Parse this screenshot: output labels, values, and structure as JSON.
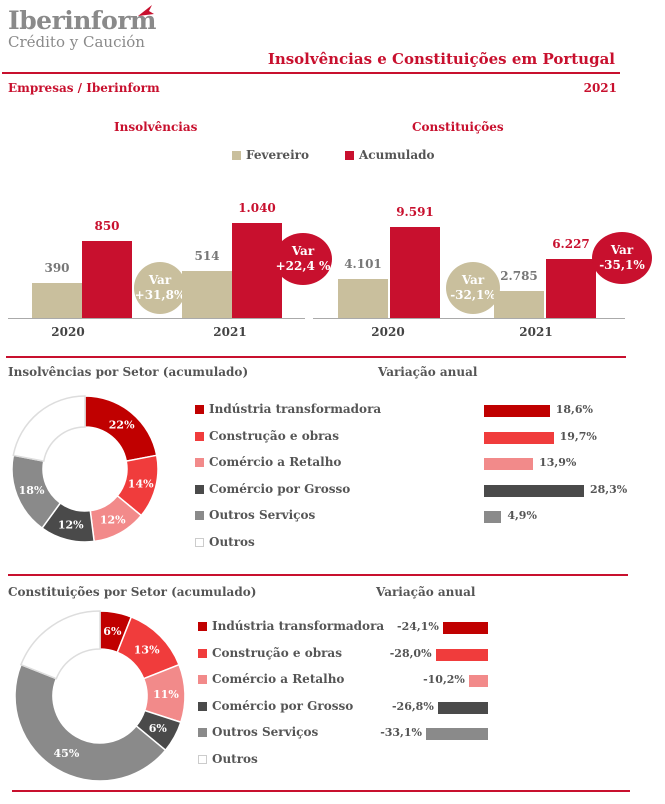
{
  "header": {
    "logo_name": "Iberinform",
    "logo_sub": "Crédito y Caución",
    "title": "Insolvências e Constituições em  Portugal",
    "subtitle": "Empresas / Iberinform",
    "year": "2021"
  },
  "colors": {
    "red": "#c8102e",
    "beige": "#c9bf9d",
    "industria": "#c00000",
    "construcao": "#f03c3c",
    "comercio_retalho": "#f28a8a",
    "comercio_grosso": "#4a4a4a",
    "outros_servicos": "#8a8a8a",
    "outros": "#ffffff"
  },
  "legend": {
    "fevereiro": "Fevereiro",
    "acumulado": "Acumulado"
  },
  "chart_data": [
    {
      "type": "bar",
      "title": "Insolvências",
      "categories": [
        "2020",
        "2021"
      ],
      "series": [
        {
          "name": "Fevereiro",
          "values": [
            390,
            514
          ],
          "labels": [
            "390",
            "514"
          ]
        },
        {
          "name": "Acumulado",
          "values": [
            850,
            1040
          ],
          "labels": [
            "850",
            "1.040"
          ]
        }
      ],
      "variations": [
        {
          "label": "Var",
          "value": "+31,8%"
        },
        {
          "label": "Var",
          "value": "+22,4 %"
        }
      ],
      "ylim": [
        0,
        1100
      ]
    },
    {
      "type": "bar",
      "title": "Constituições",
      "categories": [
        "2020",
        "2021"
      ],
      "series": [
        {
          "name": "Fevereiro",
          "values": [
            4101,
            2785
          ],
          "labels": [
            "4.101",
            "2.785"
          ]
        },
        {
          "name": "Acumulado",
          "values": [
            9591,
            6227
          ],
          "labels": [
            "9.591",
            "6.227"
          ]
        }
      ],
      "variations": [
        {
          "label": "Var",
          "value": "-32,1%"
        },
        {
          "label": "Var",
          "value": "-35,1%"
        }
      ],
      "ylim": [
        0,
        10500
      ]
    },
    {
      "type": "pie",
      "title": "Insolvências por Setor (acumulado)",
      "variation_title": "Variação anual",
      "slices": [
        {
          "name": "Indústria transformadora",
          "value": 22,
          "label": "22%",
          "variation": 18.6,
          "variation_label": "18,6%"
        },
        {
          "name": "Construção e obras",
          "value": 14,
          "label": "14%",
          "variation": 19.7,
          "variation_label": "19,7%"
        },
        {
          "name": "Comércio a Retalho",
          "value": 12,
          "label": "12%",
          "variation": 13.9,
          "variation_label": "13,9%"
        },
        {
          "name": "Comércio por Grosso",
          "value": 12,
          "label": "12%",
          "variation": 28.3,
          "variation_label": "28,3%"
        },
        {
          "name": "Outros Serviços",
          "value": 18,
          "label": "18%",
          "variation": 4.9,
          "variation_label": "4,9%"
        },
        {
          "name": "Outros",
          "value": 22,
          "label": "",
          "variation": null,
          "variation_label": ""
        }
      ]
    },
    {
      "type": "pie",
      "title": "Constituições por Setor (acumulado)",
      "variation_title": "Variação anual",
      "slices": [
        {
          "name": "Indústria transformadora",
          "value": 6,
          "label": "6%",
          "variation": -24.1,
          "variation_label": "-24,1%"
        },
        {
          "name": "Construção e obras",
          "value": 13,
          "label": "13%",
          "variation": -28.0,
          "variation_label": "-28,0%"
        },
        {
          "name": "Comércio a Retalho",
          "value": 11,
          "label": "11%",
          "variation": -10.2,
          "variation_label": "-10,2%"
        },
        {
          "name": "Comércio por Grosso",
          "value": 6,
          "label": "6%",
          "variation": -26.8,
          "variation_label": "-26,8%"
        },
        {
          "name": "Outros Serviços",
          "value": 45,
          "label": "45%",
          "variation": -33.1,
          "variation_label": "-33,1%"
        },
        {
          "name": "Outros",
          "value": 19,
          "label": "",
          "variation": null,
          "variation_label": ""
        }
      ]
    }
  ]
}
